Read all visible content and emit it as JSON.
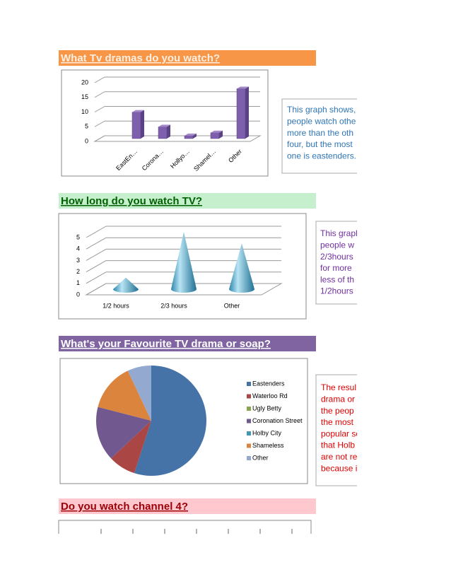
{
  "chart_data": [
    {
      "type": "bar",
      "title": "What Tv dramas do you watch?",
      "categories": [
        "EastEn…",
        "Corona…",
        "Hollyo…",
        "Shamel…",
        "Other"
      ],
      "values": [
        9,
        4,
        1,
        2,
        17
      ],
      "color": "#7e5fae",
      "ylim": [
        0,
        20
      ],
      "yticks": [
        0,
        5,
        10,
        15,
        20
      ],
      "grid": true,
      "annotation": [
        "This graph shows,",
        "people watch othe",
        "more than the oth",
        "four, but the most",
        "one is eastenders."
      ]
    },
    {
      "type": "cone",
      "title": "How long do you watch TV?",
      "categories": [
        "1/2 hours",
        "2/3 hours",
        "Other"
      ],
      "values": [
        1,
        5,
        4
      ],
      "color": "#3fa7c9",
      "ylim": [
        0,
        5
      ],
      "yticks": [
        0,
        1,
        2,
        3,
        4,
        5
      ],
      "grid": true,
      "annotation": [
        "This graph",
        "people w",
        "2/3hours",
        "for more",
        "less of th",
        "1/2hours"
      ]
    },
    {
      "type": "pie",
      "title": "What's your Favourite TV drama or soap?",
      "categories": [
        "Eastenders",
        "Waterloo Rd",
        "Ugly Betty",
        "Coronation Street",
        "Holby City",
        "Shameless",
        "Other"
      ],
      "values": [
        55,
        8,
        0,
        16,
        0,
        14,
        7
      ],
      "colors": [
        "#4572a7",
        "#aa4643",
        "#89a54e",
        "#71588f",
        "#4198af",
        "#db843d",
        "#93a9cf"
      ],
      "legend": "right",
      "annotation": [
        "The resul",
        "drama or",
        "the peop",
        "the most",
        "popular so",
        "that Holb",
        "are not re",
        "because i"
      ]
    },
    {
      "type": "bar",
      "title": "Do you watch channel 4?"
    }
  ]
}
